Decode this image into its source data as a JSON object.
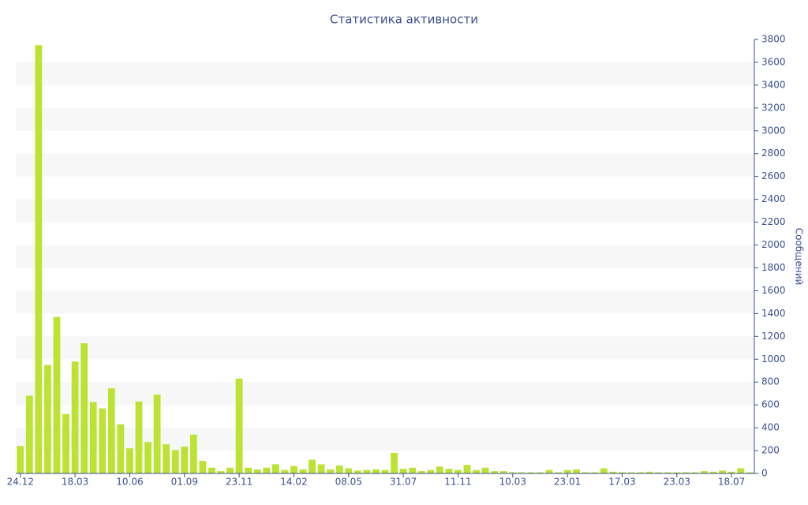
{
  "chart_data": {
    "type": "bar",
    "title": "Статистика активности",
    "y_label": "Сообщений",
    "categories": [
      "24.12",
      null,
      null,
      null,
      null,
      null,
      "18.03",
      null,
      null,
      null,
      null,
      null,
      "10.06",
      null,
      null,
      null,
      null,
      null,
      "01.09",
      null,
      null,
      null,
      null,
      null,
      "23.11",
      null,
      null,
      null,
      null,
      null,
      "14.02",
      null,
      null,
      null,
      null,
      null,
      "08.05",
      null,
      null,
      null,
      null,
      null,
      "31.07",
      null,
      null,
      null,
      null,
      null,
      "11.11",
      null,
      null,
      null,
      null,
      null,
      "10.03",
      null,
      null,
      null,
      null,
      null,
      "23.01",
      null,
      null,
      null,
      null,
      null,
      "17.03",
      null,
      null,
      null,
      null,
      null,
      "23.03",
      null,
      null,
      null,
      null,
      null,
      "18.07",
      null,
      null
    ],
    "values": [
      240,
      680,
      3750,
      950,
      1370,
      520,
      980,
      1140,
      625,
      570,
      745,
      430,
      220,
      630,
      275,
      690,
      255,
      205,
      235,
      340,
      110,
      50,
      20,
      50,
      830,
      50,
      35,
      50,
      80,
      30,
      65,
      35,
      120,
      80,
      35,
      70,
      45,
      25,
      30,
      35,
      30,
      180,
      40,
      50,
      20,
      30,
      60,
      40,
      30,
      75,
      30,
      50,
      20,
      20,
      10,
      10,
      10,
      10,
      30,
      10,
      30,
      35,
      10,
      10,
      45,
      15,
      10,
      10,
      10,
      15,
      10,
      10,
      10,
      10,
      10,
      20,
      15,
      25,
      15,
      45,
      10
    ],
    "color": "#bce234",
    "ylim": [
      0,
      3800
    ],
    "yticks": [
      0,
      200,
      400,
      600,
      800,
      1000,
      1200,
      1400,
      1600,
      1800,
      2000,
      2200,
      2400,
      2600,
      2800,
      3000,
      3200,
      3400,
      3600,
      3800
    ],
    "grid": true
  }
}
